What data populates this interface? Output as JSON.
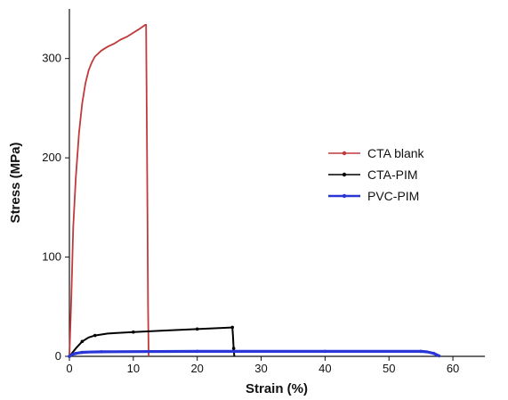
{
  "chart_data": {
    "type": "line",
    "xlabel": "Strain (%)",
    "ylabel": "Stress (MPa)",
    "xlim": [
      0,
      65
    ],
    "ylim": [
      0,
      350
    ],
    "xticks": [
      0,
      10,
      20,
      30,
      40,
      50,
      60
    ],
    "yticks": [
      0,
      100,
      200,
      300
    ],
    "grid": false,
    "legend_position": "right-middle",
    "series": [
      {
        "name": "CTA blank",
        "color": "#c0393b",
        "x": [
          0,
          0.3,
          0.6,
          1.0,
          1.5,
          2.0,
          2.5,
          3.0,
          3.5,
          4.0,
          5.0,
          6.0,
          7.0,
          8.0,
          9.0,
          10.0,
          11.0,
          11.9,
          12.0,
          12.1,
          12.2,
          12.3,
          12.4
        ],
        "y": [
          0,
          60,
          130,
          180,
          225,
          255,
          275,
          288,
          296,
          302,
          308,
          312,
          315,
          319,
          322,
          326,
          330,
          334,
          334,
          250,
          150,
          50,
          0
        ]
      },
      {
        "name": "CTA-PIM",
        "color": "#000000",
        "x": [
          0,
          1,
          2,
          3,
          4,
          6,
          10,
          15,
          20,
          25,
          25.5,
          25.6,
          25.7,
          25.8
        ],
        "y": [
          0,
          8,
          15,
          19,
          21,
          23,
          24.5,
          26,
          27.5,
          29,
          29.2,
          20,
          8,
          0
        ],
        "markers": true
      },
      {
        "name": "PVC-PIM",
        "color": "#2a35d8",
        "x": [
          0,
          0.5,
          1,
          1.5,
          2,
          3,
          5,
          10,
          20,
          30,
          40,
          50,
          55,
          56,
          57,
          58
        ],
        "y": [
          0,
          2,
          3,
          3.5,
          4,
          4.3,
          4.6,
          4.8,
          5,
          5,
          5,
          5,
          5,
          4.5,
          3,
          0
        ],
        "markers": true
      }
    ]
  }
}
